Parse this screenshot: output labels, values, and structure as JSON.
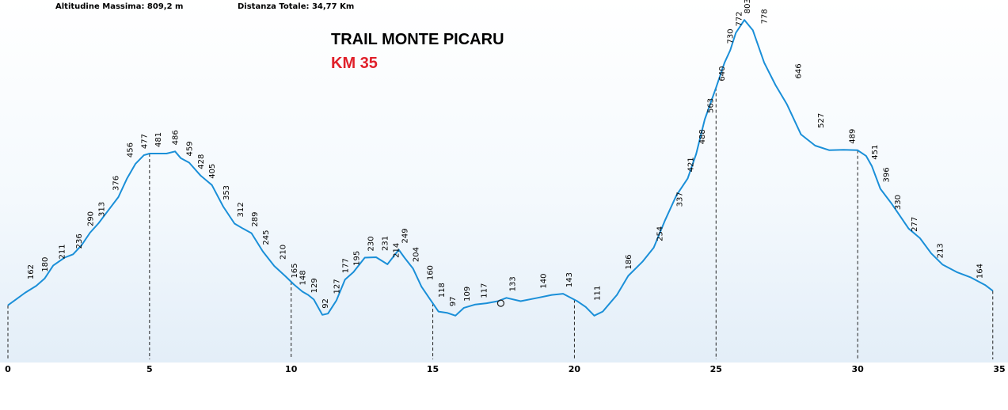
{
  "header": {
    "max_altitude": "Altitudine Massima: 809,2 m",
    "total_distance": "Distanza Totale: 34,77 Km"
  },
  "title": "TRAIL MONTE PICARU",
  "subtitle": "KM 35",
  "colors": {
    "line": "#1a8fd8",
    "subtitle": "#e0202a",
    "bg_band": "#eaf3fb"
  },
  "chart_data": {
    "type": "line",
    "title": "TRAIL MONTE PICARU",
    "subtitle": "KM 35",
    "xlabel": "",
    "ylabel": "",
    "xlim": [
      0,
      35
    ],
    "ylim": [
      0,
      809.2
    ],
    "xticks": [
      0,
      5,
      10,
      15,
      20,
      25,
      30,
      35
    ],
    "grid": false,
    "km_markers": [
      0,
      5,
      10,
      15,
      20,
      25,
      30,
      35
    ],
    "series": [
      {
        "x": [
          0,
          0.3,
          0.6,
          1.0,
          1.3,
          1.6,
          2.0,
          2.3,
          2.6,
          2.9,
          3.2,
          3.5,
          3.9,
          4.2,
          4.5,
          4.8,
          5.0,
          5.3,
          5.6,
          5.9,
          6.1,
          6.4,
          6.8,
          7.2,
          7.6,
          8.0,
          8.3,
          8.6,
          9.0,
          9.4,
          9.8,
          10.1,
          10.4,
          10.6,
          10.8,
          11.1,
          11.3,
          11.6,
          11.9,
          12.2,
          12.6,
          13.0,
          13.4,
          13.8,
          14.0,
          14.3,
          14.6,
          14.9,
          15.2,
          15.5,
          15.8,
          16.1,
          16.5,
          16.9,
          17.3,
          17.6,
          18.1,
          18.7,
          19.2,
          19.6,
          20.1,
          20.4,
          20.7,
          21.0,
          21.5,
          21.9,
          22.4,
          22.8,
          23.2,
          23.6,
          24.0,
          24.3,
          24.6,
          25.0,
          25.3,
          25.5,
          25.7,
          26.0,
          26.3,
          26.7,
          27.1,
          27.5,
          28.0,
          28.5,
          29.0,
          29.5,
          30.0,
          30.3,
          30.5,
          30.8,
          31.2,
          31.5,
          31.8,
          32.2,
          32.6,
          33.0,
          33.5,
          34.0,
          34.5,
          34.77
        ],
        "y": [
          115,
          130,
          145,
          162,
          180,
          211,
          230,
          238,
          260,
          290,
          313,
          340,
          376,
          420,
          456,
          477,
          481,
          481,
          481,
          486,
          470,
          459,
          428,
          405,
          353,
          312,
          300,
          289,
          245,
          210,
          185,
          165,
          148,
          140,
          129,
          92,
          95,
          127,
          177,
          195,
          230,
          231,
          214,
          249,
          230,
          204,
          160,
          130,
          100,
          97,
          90,
          109,
          117,
          120,
          125,
          133,
          125,
          133,
          140,
          143,
          125,
          111,
          90,
          100,
          140,
          186,
          220,
          254,
          320,
          380,
          421,
          480,
          563,
          640,
          700,
          730,
          772,
          803,
          778,
          700,
          646,
          600,
          527,
          500,
          489,
          490,
          489,
          475,
          451,
          396,
          360,
          330,
          300,
          277,
          240,
          213,
          195,
          182,
          164,
          150
        ]
      }
    ],
    "data_labels": [
      {
        "x": 0.9,
        "y": 162,
        "label": "162"
      },
      {
        "x": 1.4,
        "y": 180,
        "label": "180"
      },
      {
        "x": 2.0,
        "y": 211,
        "label": "211"
      },
      {
        "x": 2.6,
        "y": 236,
        "label": "236"
      },
      {
        "x": 3.0,
        "y": 290,
        "label": "290"
      },
      {
        "x": 3.4,
        "y": 313,
        "label": "313"
      },
      {
        "x": 3.9,
        "y": 376,
        "label": "376"
      },
      {
        "x": 4.4,
        "y": 456,
        "label": "456"
      },
      {
        "x": 4.9,
        "y": 477,
        "label": "477"
      },
      {
        "x": 5.4,
        "y": 481,
        "label": "481"
      },
      {
        "x": 6.0,
        "y": 486,
        "label": "486"
      },
      {
        "x": 6.5,
        "y": 459,
        "label": "459"
      },
      {
        "x": 6.9,
        "y": 428,
        "label": "428"
      },
      {
        "x": 7.3,
        "y": 405,
        "label": "405"
      },
      {
        "x": 7.8,
        "y": 353,
        "label": "353"
      },
      {
        "x": 8.3,
        "y": 312,
        "label": "312"
      },
      {
        "x": 8.8,
        "y": 289,
        "label": "289"
      },
      {
        "x": 9.2,
        "y": 245,
        "label": "245"
      },
      {
        "x": 9.8,
        "y": 210,
        "label": "210"
      },
      {
        "x": 10.2,
        "y": 165,
        "label": "165"
      },
      {
        "x": 10.5,
        "y": 148,
        "label": "148"
      },
      {
        "x": 10.9,
        "y": 129,
        "label": "129"
      },
      {
        "x": 11.3,
        "y": 92,
        "label": "92"
      },
      {
        "x": 11.7,
        "y": 127,
        "label": "127"
      },
      {
        "x": 12.0,
        "y": 177,
        "label": "177"
      },
      {
        "x": 12.4,
        "y": 195,
        "label": "195"
      },
      {
        "x": 12.9,
        "y": 230,
        "label": "230"
      },
      {
        "x": 13.4,
        "y": 231,
        "label": "231"
      },
      {
        "x": 13.8,
        "y": 214,
        "label": "214"
      },
      {
        "x": 14.1,
        "y": 249,
        "label": "249"
      },
      {
        "x": 14.5,
        "y": 204,
        "label": "204"
      },
      {
        "x": 15.0,
        "y": 160,
        "label": "160"
      },
      {
        "x": 15.4,
        "y": 118,
        "label": "118"
      },
      {
        "x": 15.8,
        "y": 97,
        "label": "97"
      },
      {
        "x": 16.3,
        "y": 109,
        "label": "109"
      },
      {
        "x": 16.9,
        "y": 117,
        "label": "117"
      },
      {
        "x": 17.9,
        "y": 133,
        "label": "133"
      },
      {
        "x": 19.0,
        "y": 140,
        "label": "140"
      },
      {
        "x": 19.9,
        "y": 143,
        "label": "143"
      },
      {
        "x": 20.9,
        "y": 111,
        "label": "111"
      },
      {
        "x": 22.0,
        "y": 186,
        "label": "186"
      },
      {
        "x": 23.1,
        "y": 254,
        "label": "254"
      },
      {
        "x": 23.8,
        "y": 337,
        "label": "337"
      },
      {
        "x": 24.2,
        "y": 421,
        "label": "421"
      },
      {
        "x": 24.6,
        "y": 488,
        "label": "488"
      },
      {
        "x": 24.9,
        "y": 563,
        "label": "563"
      },
      {
        "x": 25.3,
        "y": 640,
        "label": "640"
      },
      {
        "x": 25.6,
        "y": 730,
        "label": "730"
      },
      {
        "x": 25.9,
        "y": 772,
        "label": "772"
      },
      {
        "x": 26.2,
        "y": 803,
        "label": "803"
      },
      {
        "x": 26.8,
        "y": 778,
        "label": "778"
      },
      {
        "x": 28.0,
        "y": 646,
        "label": "646"
      },
      {
        "x": 28.8,
        "y": 527,
        "label": "527"
      },
      {
        "x": 29.9,
        "y": 489,
        "label": "489"
      },
      {
        "x": 30.7,
        "y": 451,
        "label": "451"
      },
      {
        "x": 31.1,
        "y": 396,
        "label": "396"
      },
      {
        "x": 31.5,
        "y": 330,
        "label": "330"
      },
      {
        "x": 32.1,
        "y": 277,
        "label": "277"
      },
      {
        "x": 33.0,
        "y": 213,
        "label": "213"
      },
      {
        "x": 34.4,
        "y": 164,
        "label": "164"
      }
    ],
    "marker": {
      "x": 17.4,
      "y": 120
    }
  }
}
